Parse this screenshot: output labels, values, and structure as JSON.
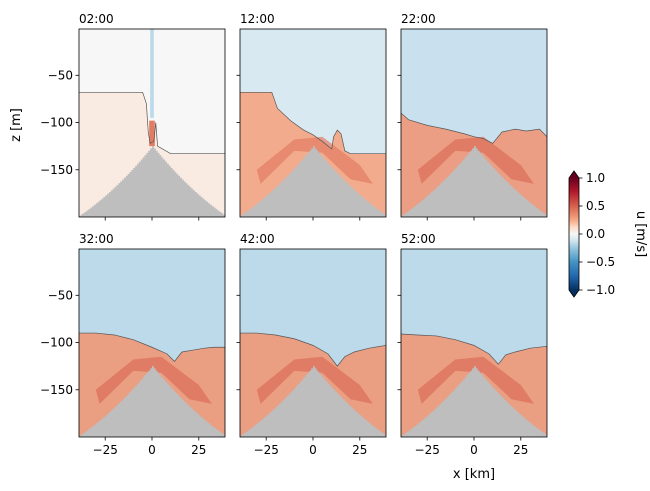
{
  "chart_data": {
    "type": "heatmap",
    "title": "",
    "xlabel": "x [km]",
    "ylabel": "z [m]",
    "xlim": [
      -39,
      39
    ],
    "ylim": [
      -200,
      -1
    ],
    "x_ticks": [
      -25,
      0,
      25
    ],
    "x_tick_labels": [
      "−25",
      "0",
      "25"
    ],
    "y_ticks": [
      -50,
      -100,
      -150
    ],
    "y_tick_labels": [
      "−50",
      "−100",
      "−150"
    ],
    "colorbar": {
      "label": "u [m/s]",
      "range": [
        -1.0,
        1.0
      ],
      "ticks": [
        1.0,
        0.5,
        0.0,
        -0.5,
        -1.0
      ],
      "tick_labels": [
        "1.0",
        "0.5",
        "0.0",
        "−0.5",
        "−1.0"
      ],
      "colormap": "RdBu_r",
      "extend": "both"
    },
    "seamount": {
      "peak_x": 0,
      "peak_z": -125,
      "half_width_km": 40,
      "color": "#bebebe"
    },
    "panels": [
      {
        "time": "02:00",
        "upper_u": 0.0,
        "lower_u": 0.05,
        "interface": [
          [
            -39,
            -68
          ],
          [
            -5,
            -68
          ],
          [
            -3,
            -80
          ],
          [
            -2,
            -110
          ],
          [
            -1,
            -122
          ],
          [
            1,
            -120
          ],
          [
            2,
            -100
          ],
          [
            3,
            -125
          ],
          [
            10,
            -133
          ],
          [
            39,
            -133
          ]
        ]
      },
      {
        "time": "12:00",
        "upper_u": -0.08,
        "lower_u": 0.25,
        "interface": [
          [
            -39,
            -68
          ],
          [
            -22,
            -68
          ],
          [
            -19,
            -85
          ],
          [
            -12,
            -98
          ],
          [
            -5,
            -108
          ],
          [
            0,
            -113
          ],
          [
            5,
            -120
          ],
          [
            10,
            -128
          ],
          [
            11,
            -115
          ],
          [
            13,
            -108
          ],
          [
            15,
            -112
          ],
          [
            17,
            -130
          ],
          [
            20,
            -133
          ],
          [
            39,
            -133
          ]
        ]
      },
      {
        "time": "22:00",
        "upper_u": -0.12,
        "lower_u": 0.3,
        "interface": [
          [
            -39,
            -90
          ],
          [
            -35,
            -97
          ],
          [
            -25,
            -103
          ],
          [
            -15,
            -107
          ],
          [
            -5,
            -112
          ],
          [
            0,
            -115
          ],
          [
            5,
            -117
          ],
          [
            10,
            -122
          ],
          [
            15,
            -110
          ],
          [
            22,
            -107
          ],
          [
            28,
            -109
          ],
          [
            35,
            -107
          ],
          [
            39,
            -115
          ]
        ]
      },
      {
        "time": "32:00",
        "upper_u": -0.15,
        "lower_u": 0.3,
        "interface": [
          [
            -39,
            -90
          ],
          [
            -30,
            -90
          ],
          [
            -20,
            -92
          ],
          [
            -10,
            -97
          ],
          [
            0,
            -105
          ],
          [
            8,
            -112
          ],
          [
            12,
            -120
          ],
          [
            16,
            -110
          ],
          [
            22,
            -108
          ],
          [
            28,
            -106
          ],
          [
            33,
            -105
          ],
          [
            39,
            -105
          ]
        ]
      },
      {
        "time": "42:00",
        "upper_u": -0.15,
        "lower_u": 0.3,
        "interface": [
          [
            -39,
            -90
          ],
          [
            -30,
            -90
          ],
          [
            -20,
            -92
          ],
          [
            -10,
            -96
          ],
          [
            0,
            -103
          ],
          [
            8,
            -112
          ],
          [
            13,
            -125
          ],
          [
            17,
            -115
          ],
          [
            22,
            -110
          ],
          [
            30,
            -106
          ],
          [
            39,
            -103
          ]
        ]
      },
      {
        "time": "52:00",
        "upper_u": -0.15,
        "lower_u": 0.3,
        "interface": [
          [
            -39,
            -91
          ],
          [
            -30,
            -92
          ],
          [
            -20,
            -93
          ],
          [
            -10,
            -97
          ],
          [
            0,
            -103
          ],
          [
            8,
            -112
          ],
          [
            13,
            -123
          ],
          [
            17,
            -113
          ],
          [
            22,
            -110
          ],
          [
            30,
            -106
          ],
          [
            39,
            -104
          ]
        ]
      }
    ]
  }
}
